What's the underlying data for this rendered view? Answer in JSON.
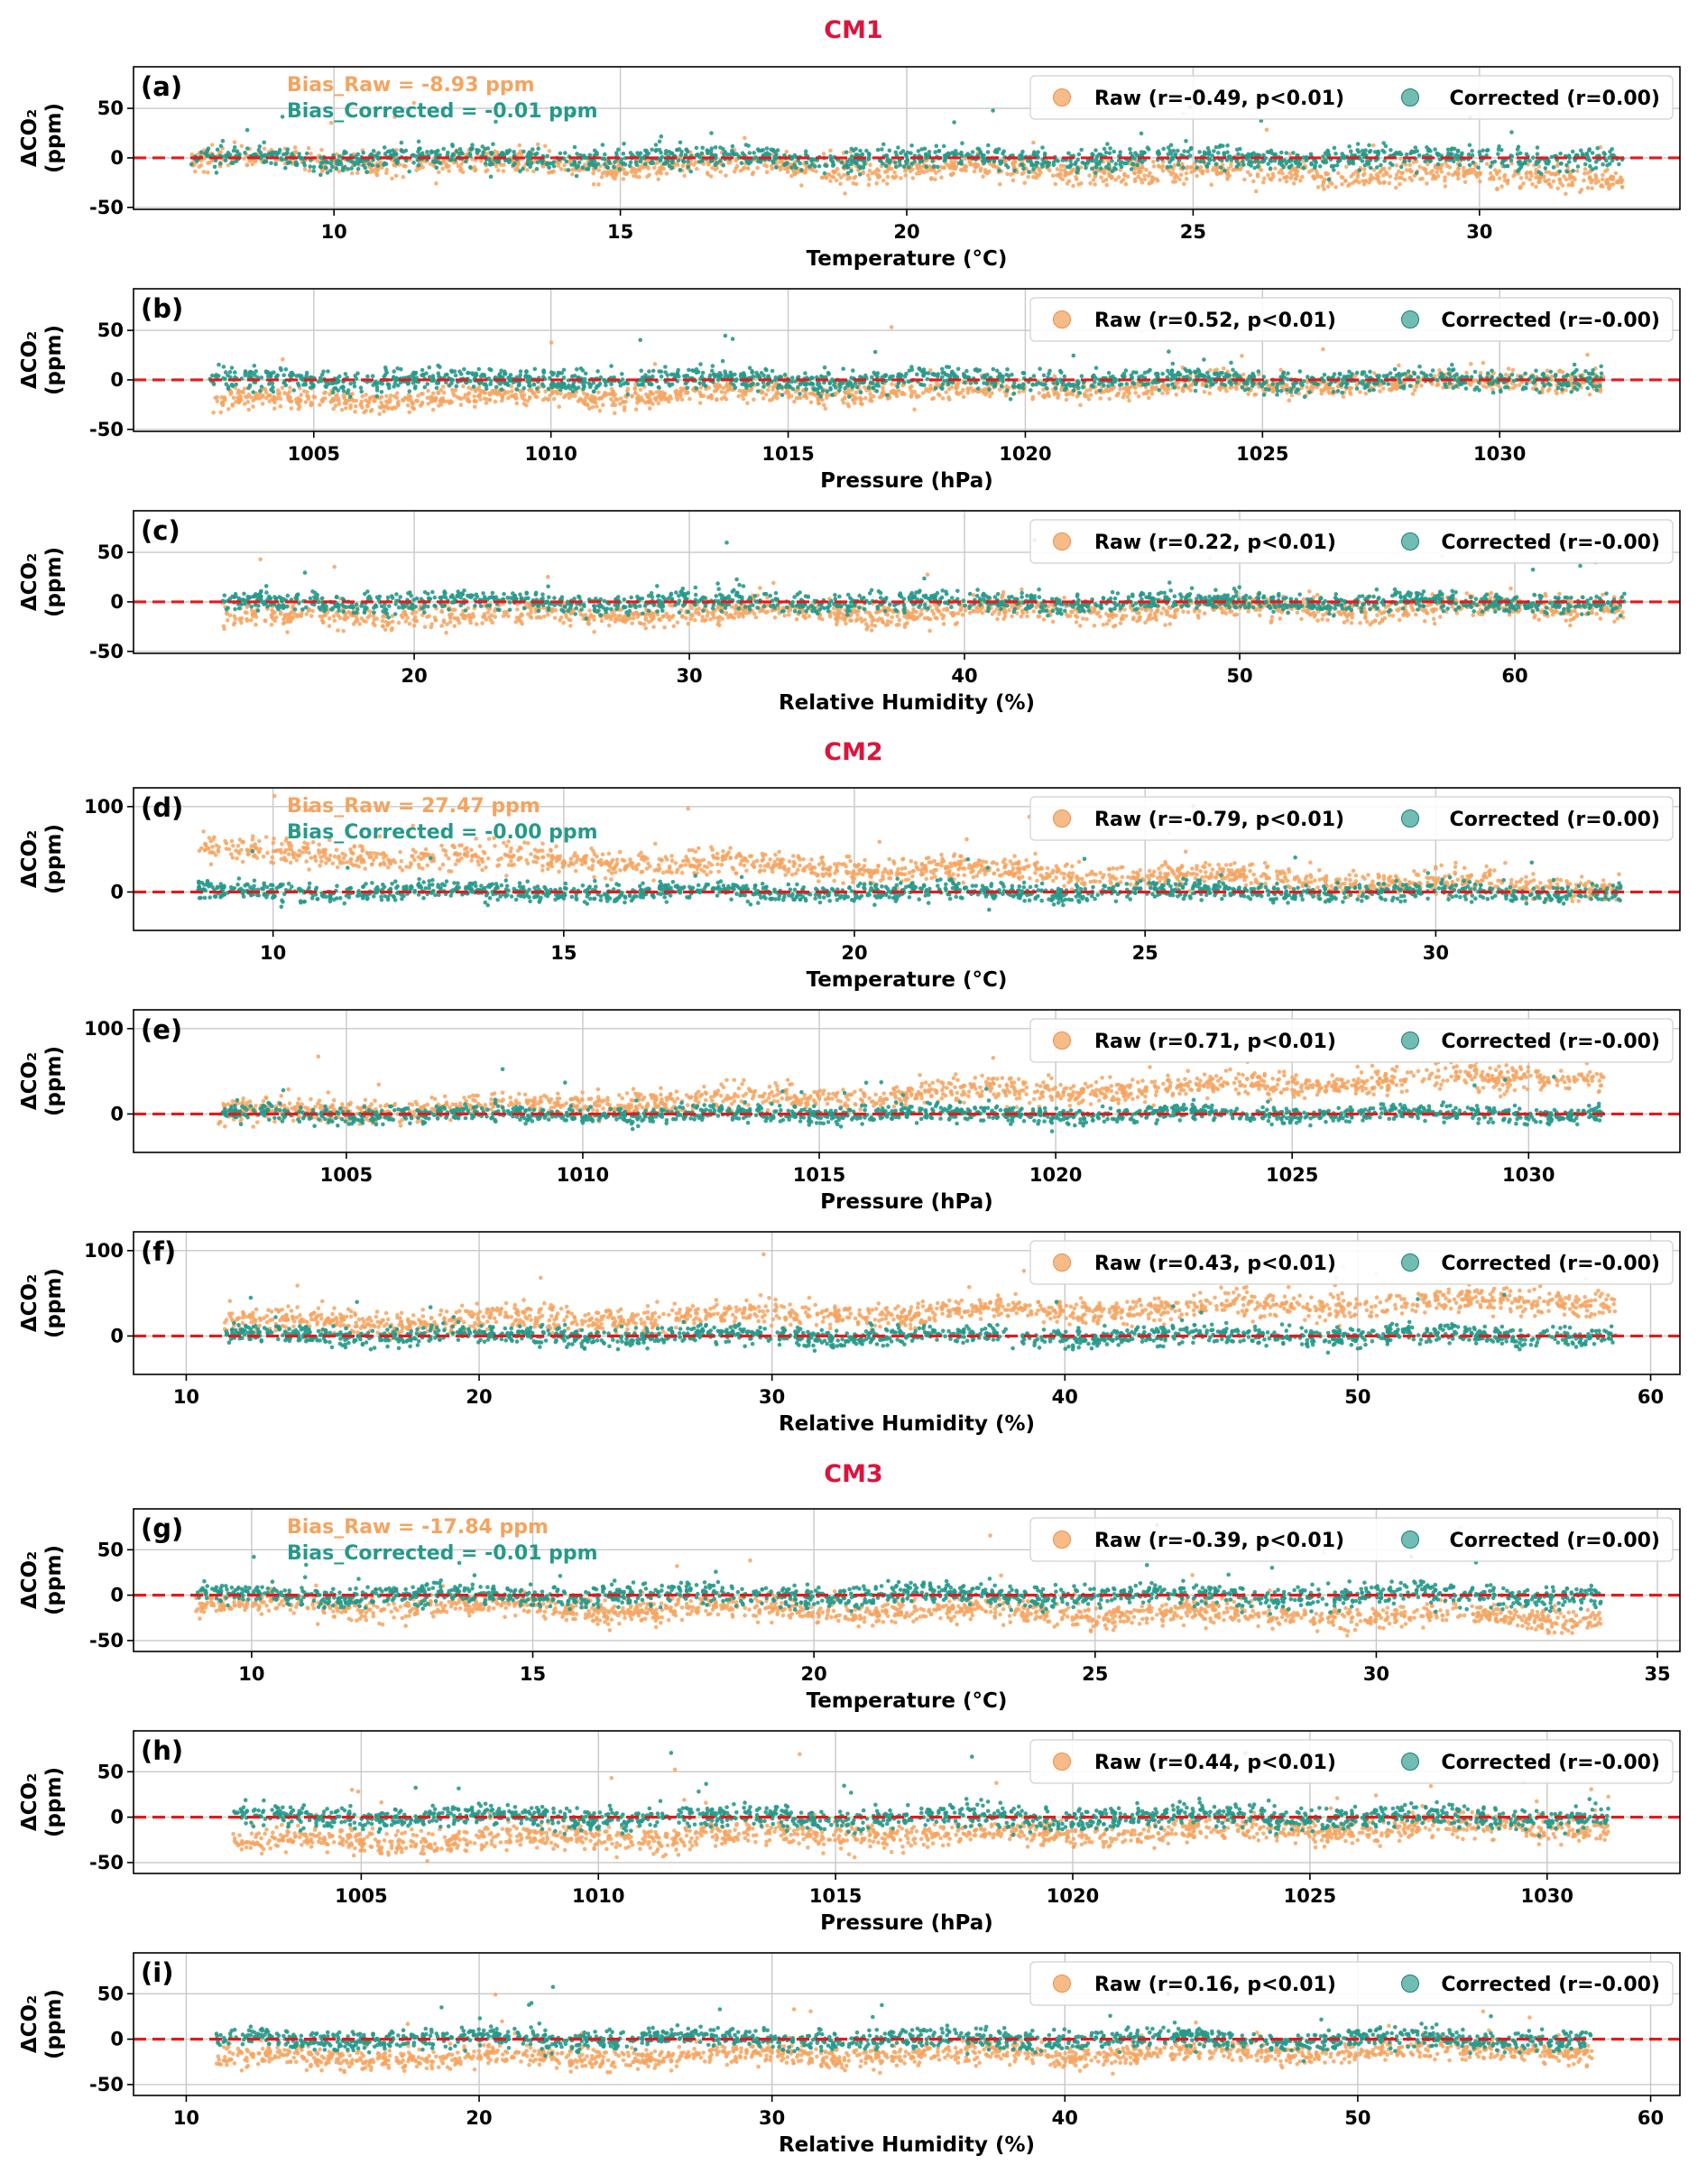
{
  "colors": {
    "raw": "#f4a460",
    "corrected": "#26998a",
    "zero_line": "#e31a1c",
    "group_title": "#dc143c",
    "grid": "#c8c8c8",
    "axis": "#000000"
  },
  "y_axis_label": [
    "ΔCO₂",
    "(ppm)"
  ],
  "groups": [
    {
      "title": "CM1",
      "panels": [
        0,
        1,
        2
      ]
    },
    {
      "title": "CM2",
      "panels": [
        3,
        4,
        5
      ]
    },
    {
      "title": "CM3",
      "panels": [
        6,
        7,
        8
      ]
    }
  ],
  "chart_data": [
    {
      "type": "scatter",
      "panel_label": "(a)",
      "group": "CM1",
      "xlabel": "Temperature (°C)",
      "ylabel": "ΔCO₂ (ppm)",
      "xlim": [
        6.5,
        33.5
      ],
      "ylim": [
        -52,
        92
      ],
      "xticks": [
        10,
        15,
        20,
        25,
        30
      ],
      "yticks": [
        -50,
        0,
        50
      ],
      "data_xrange": [
        7.5,
        32.5
      ],
      "bias_text": [
        "Bias_Raw = -8.93 ppm",
        "Bias_Corrected = -0.01 ppm"
      ],
      "legend": "top-right",
      "series": [
        {
          "name": "Raw (r=-0.49, p<0.01)",
          "key": "raw",
          "mean_start": -2,
          "mean_end": -20,
          "spread": 10
        },
        {
          "name": "Corrected (r=0.00)",
          "key": "corrected",
          "mean_start": 0,
          "mean_end": 0,
          "spread": 9
        }
      ]
    },
    {
      "type": "scatter",
      "panel_label": "(b)",
      "group": "CM1",
      "xlabel": "Pressure (hPa)",
      "ylabel": "ΔCO₂ (ppm)",
      "xlim": [
        1001.2,
        1033.8
      ],
      "ylim": [
        -52,
        92
      ],
      "xticks": [
        1005,
        1010,
        1015,
        1020,
        1025,
        1030
      ],
      "yticks": [
        -50,
        0,
        50
      ],
      "data_xrange": [
        1002.8,
        1032.2
      ],
      "legend": "top-right",
      "series": [
        {
          "name": "Raw (r=0.52, p<0.01)",
          "key": "raw",
          "mean_start": -22,
          "mean_end": 0,
          "spread": 9
        },
        {
          "name": "Corrected (r=-0.00)",
          "key": "corrected",
          "mean_start": 0,
          "mean_end": 0,
          "spread": 9
        }
      ]
    },
    {
      "type": "scatter",
      "panel_label": "(c)",
      "group": "CM1",
      "xlabel": "Relative Humidity (%)",
      "ylabel": "ΔCO₂ (ppm)",
      "xlim": [
        9.8,
        66.0
      ],
      "ylim": [
        -52,
        92
      ],
      "xticks": [
        20,
        30,
        40,
        50,
        60
      ],
      "yticks": [
        -50,
        0,
        50
      ],
      "data_xrange": [
        13.0,
        64.0
      ],
      "legend": "top-right",
      "series": [
        {
          "name": "Raw (r=0.22, p<0.01)",
          "key": "raw",
          "mean_start": -15,
          "mean_end": -5,
          "spread": 10
        },
        {
          "name": "Corrected (r=-0.00)",
          "key": "corrected",
          "mean_start": 0,
          "mean_end": 0,
          "spread": 8
        }
      ]
    },
    {
      "type": "scatter",
      "panel_label": "(d)",
      "group": "CM2",
      "xlabel": "Temperature (°C)",
      "ylabel": "ΔCO₂ (ppm)",
      "xlim": [
        7.6,
        34.2
      ],
      "ylim": [
        -45,
        122
      ],
      "xticks": [
        10,
        15,
        20,
        25,
        30
      ],
      "yticks": [
        0,
        100
      ],
      "data_xrange": [
        8.7,
        33.2
      ],
      "bias_text": [
        "Bias_Raw = 27.47 ppm",
        "Bias_Corrected = -0.00 ppm"
      ],
      "legend": "top-right",
      "series": [
        {
          "name": "Raw (r=-0.79, p<0.01)",
          "key": "raw",
          "mean_start": 48,
          "mean_end": 5,
          "spread": 12
        },
        {
          "name": "Corrected (r=0.00)",
          "key": "corrected",
          "mean_start": 0,
          "mean_end": 0,
          "spread": 9
        }
      ]
    },
    {
      "type": "scatter",
      "panel_label": "(e)",
      "group": "CM2",
      "xlabel": "Pressure (hPa)",
      "ylabel": "ΔCO₂ (ppm)",
      "xlim": [
        1000.5,
        1033.2
      ],
      "ylim": [
        -45,
        122
      ],
      "xticks": [
        1005,
        1010,
        1015,
        1020,
        1025,
        1030
      ],
      "yticks": [
        0,
        100
      ],
      "data_xrange": [
        1002.3,
        1031.6
      ],
      "legend": "top-right",
      "series": [
        {
          "name": "Raw (r=0.71, p<0.01)",
          "key": "raw",
          "mean_start": 0,
          "mean_end": 45,
          "spread": 12
        },
        {
          "name": "Corrected (r=-0.00)",
          "key": "corrected",
          "mean_start": 0,
          "mean_end": 0,
          "spread": 8
        }
      ]
    },
    {
      "type": "scatter",
      "panel_label": "(f)",
      "group": "CM2",
      "xlabel": "Relative Humidity (%)",
      "ylabel": "ΔCO₂ (ppm)",
      "xlim": [
        8.2,
        61.0
      ],
      "ylim": [
        -45,
        122
      ],
      "xticks": [
        10,
        20,
        30,
        40,
        50,
        60
      ],
      "yticks": [
        0,
        100
      ],
      "data_xrange": [
        11.3,
        58.8
      ],
      "legend": "top-right",
      "series": [
        {
          "name": "Raw (r=0.43, p<0.01)",
          "key": "raw",
          "mean_start": 14,
          "mean_end": 42,
          "spread": 12
        },
        {
          "name": "Corrected (r=-0.00)",
          "key": "corrected",
          "mean_start": 0,
          "mean_end": 0,
          "spread": 9
        }
      ]
    },
    {
      "type": "scatter",
      "panel_label": "(g)",
      "group": "CM3",
      "xlabel": "Temperature (°C)",
      "ylabel": "ΔCO₂ (ppm)",
      "xlim": [
        7.9,
        35.4
      ],
      "ylim": [
        -62,
        95
      ],
      "xticks": [
        10,
        15,
        20,
        25,
        30,
        35
      ],
      "yticks": [
        -50,
        0,
        50
      ],
      "data_xrange": [
        9.0,
        34.0
      ],
      "bias_text": [
        "Bias_Raw = -17.84 ppm",
        "Bias_Corrected = -0.01 ppm"
      ],
      "legend": "top-right",
      "series": [
        {
          "name": "Raw (r=-0.39, p<0.01)",
          "key": "raw",
          "mean_start": -10,
          "mean_end": -25,
          "spread": 11
        },
        {
          "name": "Corrected (r=0.00)",
          "key": "corrected",
          "mean_start": 0,
          "mean_end": 0,
          "spread": 10
        }
      ]
    },
    {
      "type": "scatter",
      "panel_label": "(h)",
      "group": "CM3",
      "xlabel": "Pressure (hPa)",
      "ylabel": "ΔCO₂ (ppm)",
      "xlim": [
        1000.2,
        1032.8
      ],
      "ylim": [
        -62,
        95
      ],
      "xticks": [
        1005,
        1010,
        1015,
        1020,
        1025,
        1030
      ],
      "yticks": [
        -50,
        0,
        50
      ],
      "data_xrange": [
        1002.3,
        1031.3
      ],
      "legend": "top-right",
      "series": [
        {
          "name": "Raw (r=0.44, p<0.01)",
          "key": "raw",
          "mean_start": -28,
          "mean_end": -10,
          "spread": 11
        },
        {
          "name": "Corrected (r=-0.00)",
          "key": "corrected",
          "mean_start": 0,
          "mean_end": 0,
          "spread": 10
        }
      ]
    },
    {
      "type": "scatter",
      "panel_label": "(i)",
      "group": "CM3",
      "xlabel": "Relative Humidity (%)",
      "ylabel": "ΔCO₂ (ppm)",
      "xlim": [
        8.2,
        61.0
      ],
      "ylim": [
        -62,
        95
      ],
      "xticks": [
        10,
        20,
        30,
        40,
        50,
        60
      ],
      "yticks": [
        -50,
        0,
        50
      ],
      "data_xrange": [
        11.0,
        58.0
      ],
      "legend": "top-right",
      "series": [
        {
          "name": "Raw (r=0.16, p<0.01)",
          "key": "raw",
          "mean_start": -22,
          "mean_end": -12,
          "spread": 10
        },
        {
          "name": "Corrected (r=-0.00)",
          "key": "corrected",
          "mean_start": 0,
          "mean_end": 0,
          "spread": 9
        }
      ]
    }
  ]
}
